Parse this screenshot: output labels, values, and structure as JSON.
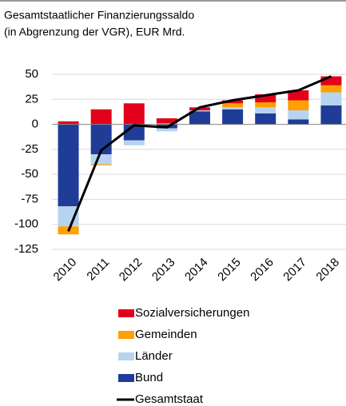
{
  "chart_data": {
    "type": "bar",
    "stacked": true,
    "title": "Gesamtstaatlicher Finanzierungssaldo",
    "subtitle": "(in Abgrenzung der VGR), EUR Mrd.",
    "categories": [
      "2010",
      "2011",
      "2012",
      "2013",
      "2014",
      "2015",
      "2016",
      "2017",
      "2018"
    ],
    "series": [
      {
        "name": "Bund",
        "color": "#1f3c96",
        "values": [
          -82,
          -30,
          -16,
          -4,
          13,
          15,
          11,
          5,
          19
        ]
      },
      {
        "name": "Länder",
        "color": "#b7d3f2",
        "values": [
          -20,
          -10,
          -5,
          -3,
          1,
          2,
          6,
          9,
          13
        ]
      },
      {
        "name": "Gemeinden",
        "color": "#ff9f00",
        "values": [
          -8,
          -1,
          0,
          1,
          0,
          4,
          5,
          10,
          7
        ]
      },
      {
        "name": "Sozialversicherungen",
        "color": "#e3001b",
        "values": [
          3,
          15,
          21,
          5,
          3,
          3,
          8,
          10,
          9
        ]
      },
      {
        "name": "Gesamtstaat",
        "type": "line",
        "color": "#000000",
        "values": [
          -107,
          -26,
          -1,
          -3,
          17,
          24,
          29,
          34,
          48
        ]
      }
    ],
    "ylim": [
      -125,
      50
    ],
    "yticks": [
      -125,
      -100,
      -75,
      -50,
      -25,
      0,
      25,
      50
    ],
    "grid": true,
    "legend": "bottom"
  }
}
